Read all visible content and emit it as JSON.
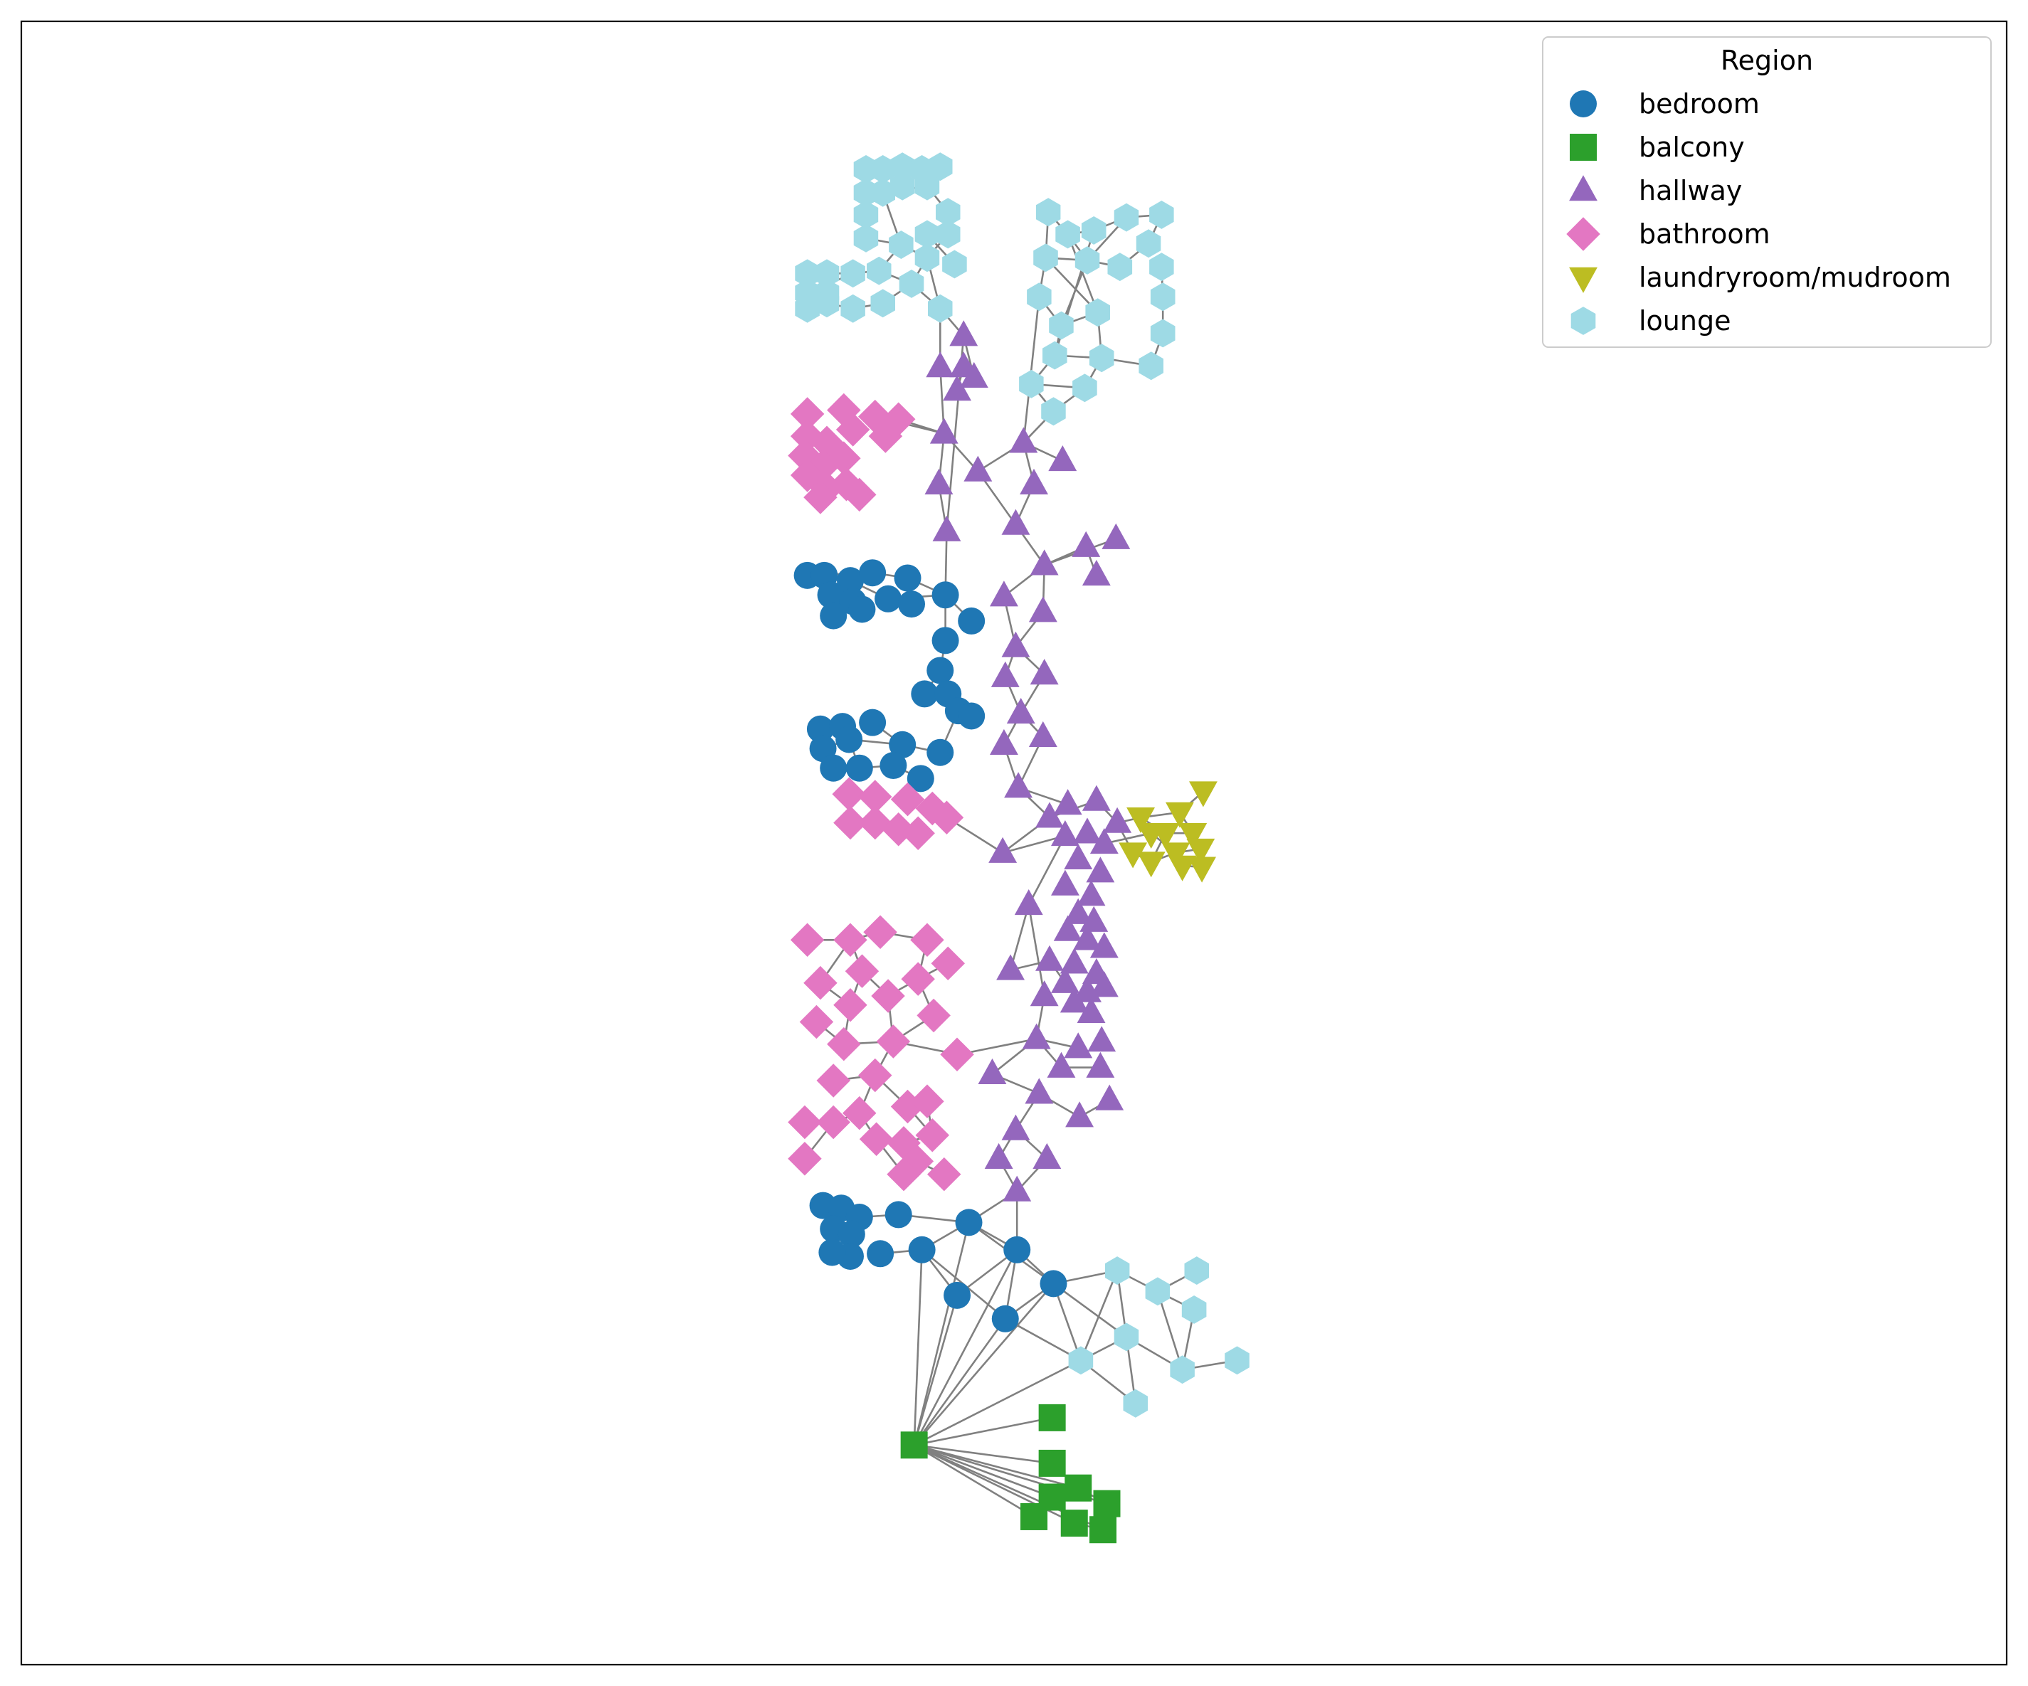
{
  "legend": {
    "title": "Region",
    "entries": [
      {
        "key": "bedroom",
        "label": "bedroom",
        "color": "#1f77b4",
        "marker": "circle"
      },
      {
        "key": "balcony",
        "label": "balcony",
        "color": "#2ca02c",
        "marker": "square"
      },
      {
        "key": "hallway",
        "label": "hallway",
        "color": "#9467bd",
        "marker": "triangle-up"
      },
      {
        "key": "bathroom",
        "label": "bathroom",
        "color": "#e377c2",
        "marker": "diamond"
      },
      {
        "key": "laundry",
        "label": "laundryroom/mudroom",
        "color": "#bcbd22",
        "marker": "triangle-down"
      },
      {
        "key": "lounge",
        "label": "lounge",
        "color": "#9edae5",
        "marker": "hexagon"
      }
    ]
  },
  "edge_color": "#808080",
  "frame_color": "#000000"
}
